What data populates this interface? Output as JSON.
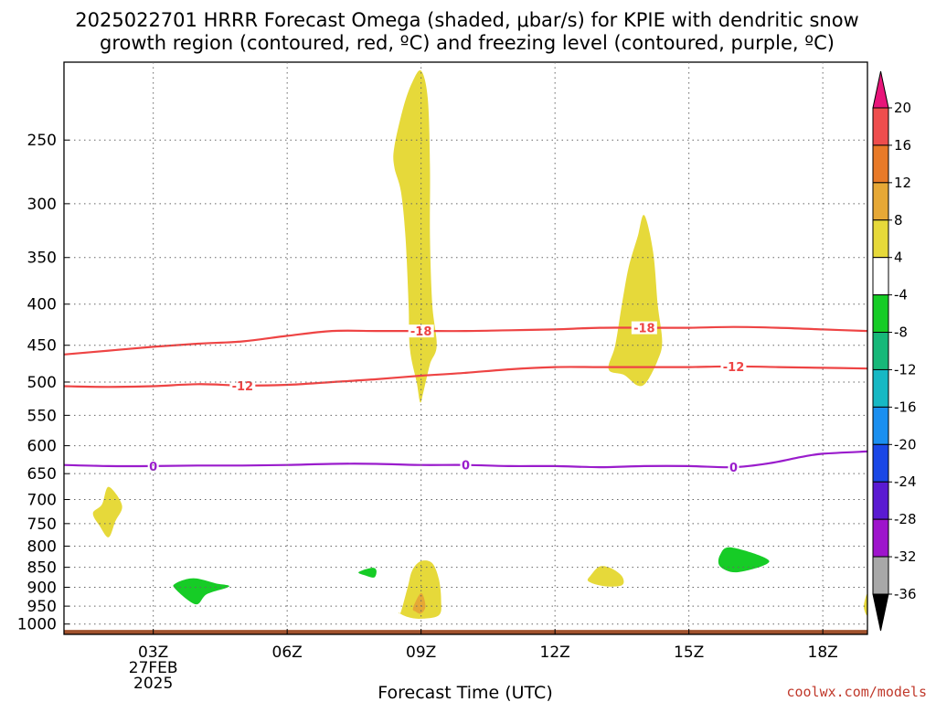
{
  "chart_data": {
    "type": "heatmap",
    "title": [
      "2025022701 HRRR Forecast Omega (shaded, μbar/s) for KPIE with dendritic snow",
      "growth region (contoured, red, ºC) and freezing level (contoured, purple, ºC)"
    ],
    "xlabel": "Forecast Time (UTC)",
    "ylabel": "",
    "credit": "coolwx.com/models",
    "x_ticks": [
      "03Z",
      "06Z",
      "09Z",
      "12Z",
      "15Z",
      "18Z"
    ],
    "x_date_labels": [
      "27FEB",
      "2025"
    ],
    "xlim_hours": [
      1.0,
      19.0
    ],
    "y_ticks": [
      "250",
      "300",
      "350",
      "400",
      "450",
      "500",
      "550",
      "600",
      "650",
      "700",
      "750",
      "800",
      "850",
      "900",
      "950",
      "1000"
    ],
    "ylim_hPa": [
      1030,
      200
    ],
    "colorbar": {
      "ticks": [
        "20",
        "16",
        "12",
        "8",
        "4",
        "-4",
        "-8",
        "-12",
        "-16",
        "-20",
        "-24",
        "-28",
        "-32",
        "-36"
      ],
      "bins": [
        {
          "range": [
            20,
            99
          ],
          "color": "#e8157a"
        },
        {
          "range": [
            16,
            20
          ],
          "color": "#ee4d4d"
        },
        {
          "range": [
            12,
            16
          ],
          "color": "#e87a28"
        },
        {
          "range": [
            8,
            12
          ],
          "color": "#e6a836"
        },
        {
          "range": [
            4,
            8
          ],
          "color": "#e6d93a"
        },
        {
          "range": [
            -4,
            4
          ],
          "color": "#ffffff"
        },
        {
          "range": [
            -8,
            -4
          ],
          "color": "#16cc26"
        },
        {
          "range": [
            -12,
            -8
          ],
          "color": "#17b879"
        },
        {
          "range": [
            -16,
            -12
          ],
          "color": "#17b8c4"
        },
        {
          "range": [
            -20,
            -16
          ],
          "color": "#1a8ff0"
        },
        {
          "range": [
            -24,
            -20
          ],
          "color": "#1a47e6"
        },
        {
          "range": [
            -28,
            -24
          ],
          "color": "#5a1ad2"
        },
        {
          "range": [
            -32,
            -28
          ],
          "color": "#9e14cc"
        },
        {
          "range": [
            -36,
            -32
          ],
          "color": "#a8a8a8"
        },
        {
          "range": [
            -99,
            -36
          ],
          "color": "#000000"
        }
      ]
    },
    "contours": [
      {
        "name": "-18",
        "color": "#ee4444",
        "labels_at_hours": [
          9.0,
          14.0
        ],
        "points": [
          [
            1.0,
            462
          ],
          [
            2.0,
            457
          ],
          [
            3.0,
            452
          ],
          [
            4.0,
            448
          ],
          [
            5.0,
            445
          ],
          [
            6.0,
            438
          ],
          [
            7.0,
            432
          ],
          [
            8.0,
            432
          ],
          [
            9.0,
            432
          ],
          [
            10.0,
            432
          ],
          [
            11.0,
            431
          ],
          [
            12.0,
            430
          ],
          [
            13.0,
            428
          ],
          [
            14.0,
            428
          ],
          [
            15.0,
            428
          ],
          [
            16.0,
            427
          ],
          [
            17.0,
            428
          ],
          [
            18.0,
            430
          ],
          [
            19.0,
            432
          ]
        ]
      },
      {
        "name": "-12",
        "color": "#ee4444",
        "labels_at_hours": [
          5.0,
          16.0
        ],
        "points": [
          [
            1.0,
            506
          ],
          [
            2.0,
            507
          ],
          [
            3.0,
            506
          ],
          [
            4.0,
            503
          ],
          [
            5.0,
            505
          ],
          [
            6.0,
            504
          ],
          [
            7.0,
            500
          ],
          [
            8.0,
            496
          ],
          [
            9.0,
            491
          ],
          [
            10.0,
            487
          ],
          [
            11.0,
            482
          ],
          [
            12.0,
            479
          ],
          [
            13.0,
            479
          ],
          [
            14.0,
            479
          ],
          [
            15.0,
            479
          ],
          [
            16.0,
            478
          ],
          [
            17.0,
            479
          ],
          [
            18.0,
            480
          ],
          [
            19.0,
            481
          ]
        ]
      },
      {
        "name": "0",
        "color": "#9a1ccc",
        "labels_at_hours": [
          3.0,
          10.0,
          16.0
        ],
        "points": [
          [
            1.0,
            634
          ],
          [
            2.0,
            636
          ],
          [
            3.0,
            636
          ],
          [
            4.0,
            635
          ],
          [
            5.0,
            635
          ],
          [
            6.0,
            634
          ],
          [
            7.0,
            632
          ],
          [
            8.0,
            632
          ],
          [
            9.0,
            634
          ],
          [
            10.0,
            634
          ],
          [
            11.0,
            636
          ],
          [
            12.0,
            636
          ],
          [
            13.0,
            638
          ],
          [
            14.0,
            636
          ],
          [
            15.0,
            636
          ],
          [
            16.0,
            638
          ],
          [
            16.8,
            631
          ],
          [
            17.5,
            620
          ],
          [
            18.0,
            614
          ],
          [
            19.0,
            610
          ]
        ]
      }
    ],
    "omega_regions": [
      {
        "level": "4 to 8",
        "color": "#e6d93a",
        "points": [
          [
            8.4,
            255
          ],
          [
            8.6,
            228
          ],
          [
            8.8,
            212
          ],
          [
            9.0,
            205
          ],
          [
            9.15,
            222
          ],
          [
            9.2,
            270
          ],
          [
            9.2,
            330
          ],
          [
            9.25,
            400
          ],
          [
            9.35,
            450
          ],
          [
            9.2,
            475
          ],
          [
            9.05,
            515
          ],
          [
            8.98,
            530
          ],
          [
            8.9,
            500
          ],
          [
            8.75,
            455
          ],
          [
            8.72,
            400
          ],
          [
            8.65,
            330
          ],
          [
            8.55,
            290
          ],
          [
            8.4,
            270
          ]
        ]
      },
      {
        "level": "4 to 8",
        "color": "#e6d93a",
        "points": [
          [
            13.85,
            330
          ],
          [
            14.0,
            310
          ],
          [
            14.2,
            345
          ],
          [
            14.3,
            400
          ],
          [
            14.4,
            445
          ],
          [
            14.3,
            470
          ],
          [
            14.05,
            500
          ],
          [
            13.85,
            505
          ],
          [
            13.55,
            490
          ],
          [
            13.2,
            482
          ],
          [
            13.35,
            450
          ],
          [
            13.5,
            400
          ],
          [
            13.65,
            360
          ]
        ]
      },
      {
        "level": "4 to 8",
        "color": "#e6d93a",
        "points": [
          [
            1.85,
            710
          ],
          [
            2.0,
            675
          ],
          [
            2.3,
            712
          ],
          [
            2.15,
            745
          ],
          [
            2.0,
            780
          ],
          [
            1.8,
            755
          ],
          [
            1.65,
            728
          ]
        ]
      },
      {
        "level": "4 to 8",
        "color": "#e6d93a",
        "points": [
          [
            8.55,
            965
          ],
          [
            8.7,
            900
          ],
          [
            8.8,
            858
          ],
          [
            9.0,
            835
          ],
          [
            9.25,
            840
          ],
          [
            9.4,
            880
          ],
          [
            9.45,
            935
          ],
          [
            9.4,
            975
          ],
          [
            9.0,
            985
          ],
          [
            8.7,
            980
          ],
          [
            8.5,
            968
          ]
        ]
      },
      {
        "level": "8 to 12",
        "color": "#e6a836",
        "points": [
          [
            8.82,
            955
          ],
          [
            9.0,
            915
          ],
          [
            9.1,
            950
          ],
          [
            9.0,
            970
          ],
          [
            8.88,
            965
          ]
        ]
      },
      {
        "level": "4 to 8",
        "color": "#e6d93a",
        "points": [
          [
            12.8,
            870
          ],
          [
            13.0,
            848
          ],
          [
            13.25,
            852
          ],
          [
            13.5,
            872
          ],
          [
            13.5,
            895
          ],
          [
            13.1,
            897
          ],
          [
            12.75,
            885
          ]
        ]
      },
      {
        "level": "4 to 8",
        "color": "#e6d93a",
        "points": [
          [
            18.95,
            930
          ],
          [
            19.0,
            920
          ],
          [
            19.0,
            975
          ],
          [
            18.92,
            955
          ]
        ]
      },
      {
        "level": "-8 to -4",
        "color": "#16cc26",
        "points": [
          [
            3.5,
            890
          ],
          [
            3.9,
            877
          ],
          [
            4.4,
            890
          ],
          [
            4.7,
            898
          ],
          [
            4.2,
            918
          ],
          [
            3.95,
            945
          ],
          [
            3.5,
            905
          ]
        ]
      },
      {
        "level": "-8 to -4",
        "color": "#16cc26",
        "points": [
          [
            15.7,
            820
          ],
          [
            15.95,
            803
          ],
          [
            16.8,
            835
          ],
          [
            16.1,
            862
          ],
          [
            15.7,
            848
          ]
        ]
      },
      {
        "level": "-8 to -4",
        "color": "#16cc26",
        "points": [
          [
            7.6,
            862
          ],
          [
            7.9,
            851
          ],
          [
            8.0,
            858
          ],
          [
            7.95,
            875
          ],
          [
            7.75,
            870
          ]
        ]
      }
    ],
    "terrain": {
      "color": "#a0522d",
      "top_hPa": 1017
    }
  }
}
